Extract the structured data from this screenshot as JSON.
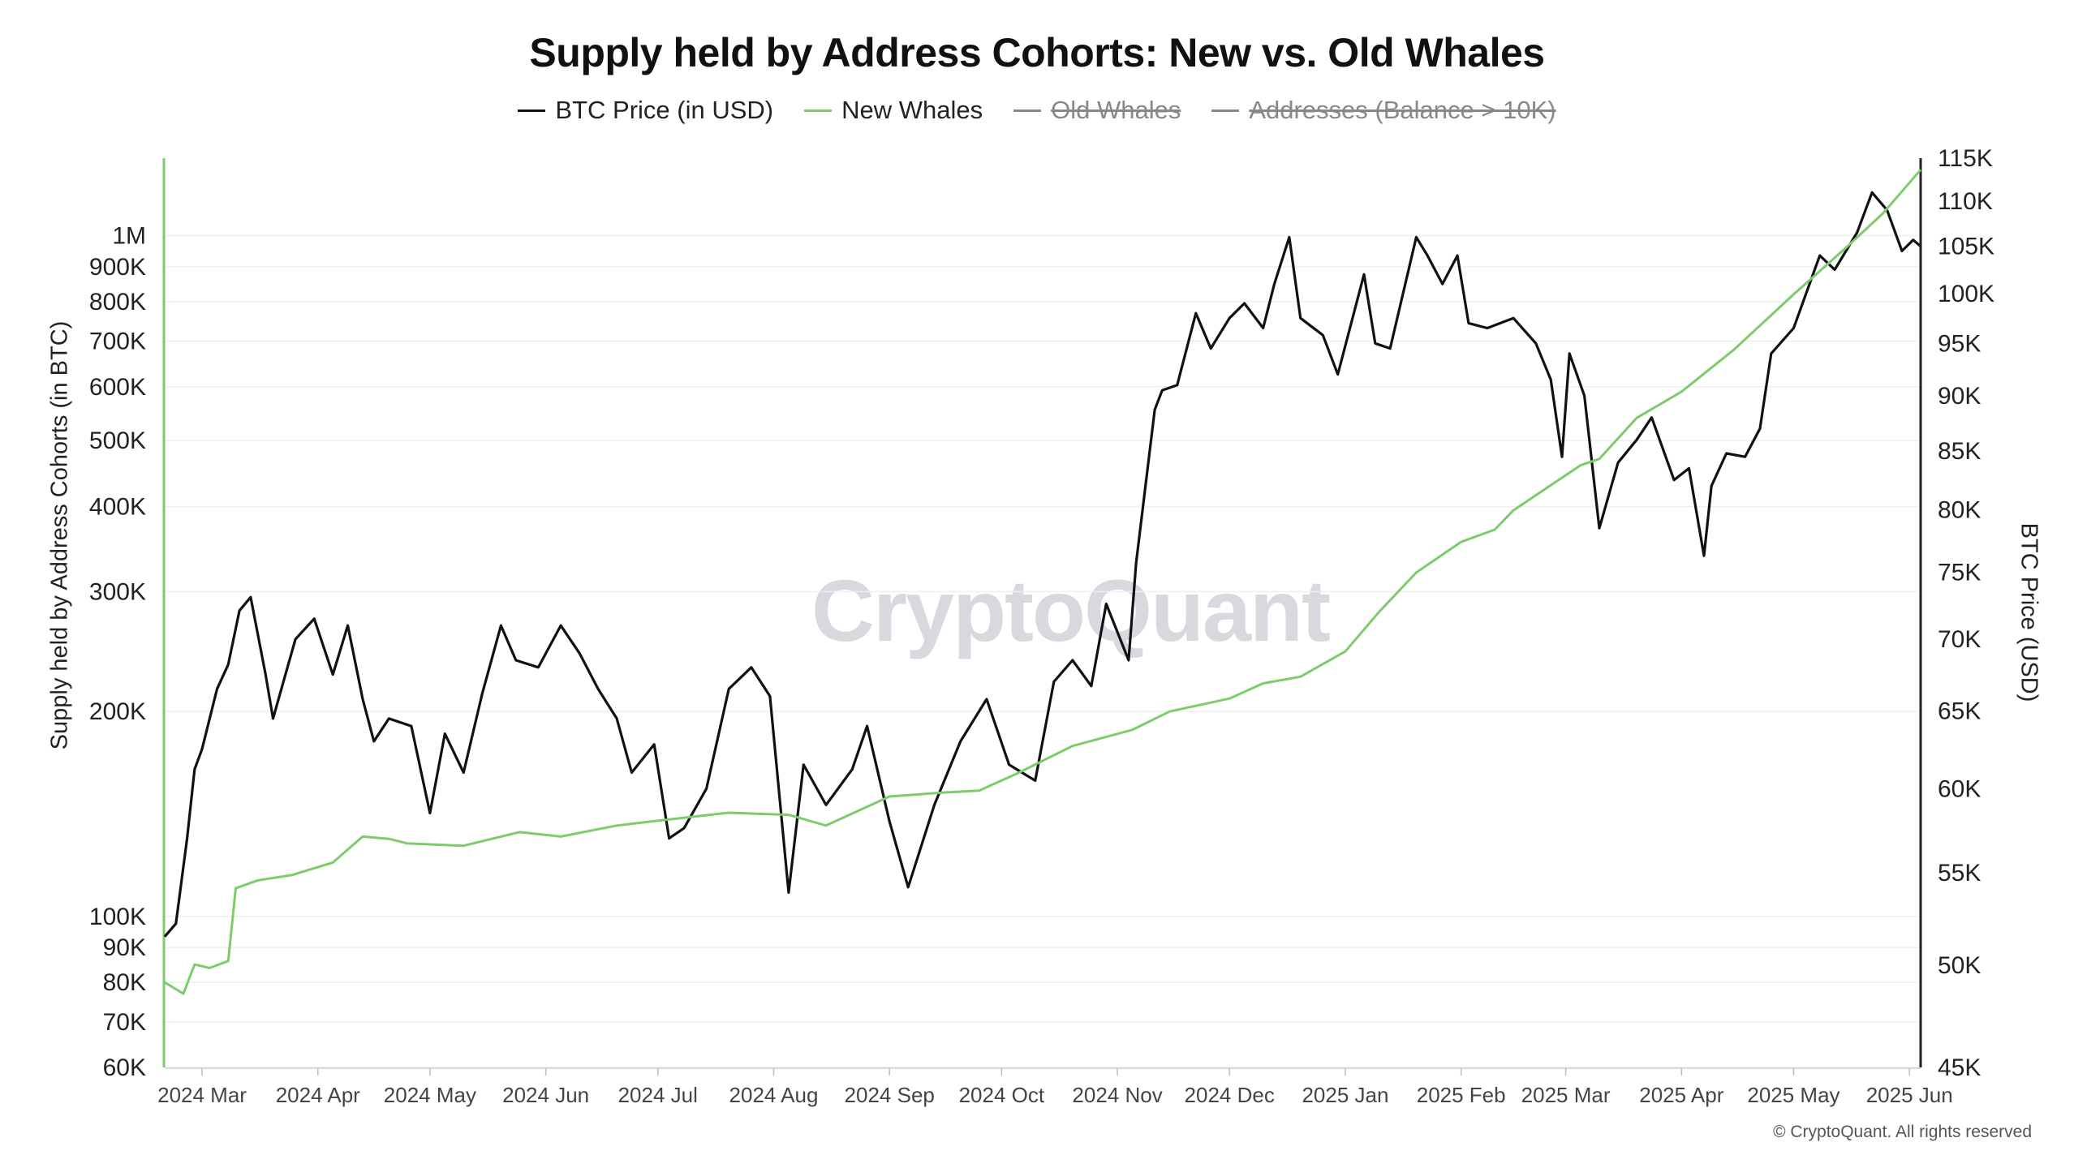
{
  "title": "Supply held by Address Cohorts: New vs. Old Whales",
  "legend": [
    {
      "label": "BTC Price (in USD)",
      "color": "#111111",
      "hidden": false
    },
    {
      "label": "New Whales",
      "color": "#7ccc6c",
      "hidden": false
    },
    {
      "label": "Old Whales",
      "color": "#888888",
      "hidden": true
    },
    {
      "label": "Addresses (Balance > 10K)",
      "color": "#888888",
      "hidden": true
    }
  ],
  "watermark": "CryptoQuant",
  "copyright": "© CryptoQuant. All rights reserved",
  "chart_data": {
    "type": "line",
    "title": "Supply held by Address Cohorts: New vs. Old Whales",
    "ylabel_left": "Supply held by Address Cohorts (in BTC)",
    "ylabel_right": "BTC Price (USD)",
    "left_axis": {
      "scale": "log",
      "range": [
        60000,
        1300000
      ],
      "ticks": [
        {
          "v": 60000,
          "label": "60K"
        },
        {
          "v": 70000,
          "label": "70K"
        },
        {
          "v": 80000,
          "label": "80K"
        },
        {
          "v": 90000,
          "label": "90K"
        },
        {
          "v": 100000,
          "label": "100K"
        },
        {
          "v": 200000,
          "label": "200K"
        },
        {
          "v": 300000,
          "label": "300K"
        },
        {
          "v": 400000,
          "label": "400K"
        },
        {
          "v": 500000,
          "label": "500K"
        },
        {
          "v": 600000,
          "label": "600K"
        },
        {
          "v": 700000,
          "label": "700K"
        },
        {
          "v": 800000,
          "label": "800K"
        },
        {
          "v": 900000,
          "label": "900K"
        },
        {
          "v": 1000000,
          "label": "1M"
        }
      ]
    },
    "right_axis": {
      "scale": "log",
      "range": [
        45000,
        115000
      ],
      "ticks": [
        {
          "v": 45000,
          "label": "45K"
        },
        {
          "v": 50000,
          "label": "50K"
        },
        {
          "v": 55000,
          "label": "55K"
        },
        {
          "v": 60000,
          "label": "60K"
        },
        {
          "v": 65000,
          "label": "65K"
        },
        {
          "v": 70000,
          "label": "70K"
        },
        {
          "v": 75000,
          "label": "75K"
        },
        {
          "v": 80000,
          "label": "80K"
        },
        {
          "v": 85000,
          "label": "85K"
        },
        {
          "v": 90000,
          "label": "90K"
        },
        {
          "v": 95000,
          "label": "95K"
        },
        {
          "v": 100000,
          "label": "100K"
        },
        {
          "v": 105000,
          "label": "105K"
        },
        {
          "v": 110000,
          "label": "110K"
        },
        {
          "v": 115000,
          "label": "115K"
        }
      ]
    },
    "x_range": [
      "2024-02-20",
      "2025-06-04"
    ],
    "x_ticks": [
      {
        "date": "2024-03-01",
        "label": "2024 Mar"
      },
      {
        "date": "2024-04-01",
        "label": "2024 Apr"
      },
      {
        "date": "2024-05-01",
        "label": "2024 May"
      },
      {
        "date": "2024-06-01",
        "label": "2024 Jun"
      },
      {
        "date": "2024-07-01",
        "label": "2024 Jul"
      },
      {
        "date": "2024-08-01",
        "label": "2024 Aug"
      },
      {
        "date": "2024-09-01",
        "label": "2024 Sep"
      },
      {
        "date": "2024-10-01",
        "label": "2024 Oct"
      },
      {
        "date": "2024-11-01",
        "label": "2024 Nov"
      },
      {
        "date": "2024-12-01",
        "label": "2024 Dec"
      },
      {
        "date": "2025-01-01",
        "label": "2025 Jan"
      },
      {
        "date": "2025-02-01",
        "label": "2025 Feb"
      },
      {
        "date": "2025-03-01",
        "label": "2025 Mar"
      },
      {
        "date": "2025-04-01",
        "label": "2025 Apr"
      },
      {
        "date": "2025-05-01",
        "label": "2025 May"
      },
      {
        "date": "2025-06-01",
        "label": "2025 Jun"
      }
    ],
    "grid": "horizontal",
    "series": [
      {
        "name": "BTC Price (in USD)",
        "axis": "right",
        "color": "#111111",
        "x": [
          "2024-02-20",
          "2024-02-23",
          "2024-02-26",
          "2024-02-28",
          "2024-03-01",
          "2024-03-05",
          "2024-03-08",
          "2024-03-11",
          "2024-03-14",
          "2024-03-18",
          "2024-03-20",
          "2024-03-23",
          "2024-03-26",
          "2024-03-31",
          "2024-04-05",
          "2024-04-09",
          "2024-04-13",
          "2024-04-16",
          "2024-04-20",
          "2024-04-26",
          "2024-05-01",
          "2024-05-05",
          "2024-05-10",
          "2024-05-15",
          "2024-05-20",
          "2024-05-24",
          "2024-05-30",
          "2024-06-05",
          "2024-06-10",
          "2024-06-15",
          "2024-06-20",
          "2024-06-24",
          "2024-06-30",
          "2024-07-04",
          "2024-07-08",
          "2024-07-14",
          "2024-07-20",
          "2024-07-26",
          "2024-07-31",
          "2024-08-05",
          "2024-08-09",
          "2024-08-15",
          "2024-08-22",
          "2024-08-26",
          "2024-09-01",
          "2024-09-06",
          "2024-09-13",
          "2024-09-20",
          "2024-09-27",
          "2024-10-03",
          "2024-10-10",
          "2024-10-15",
          "2024-10-20",
          "2024-10-25",
          "2024-10-29",
          "2024-11-04",
          "2024-11-06",
          "2024-11-11",
          "2024-11-13",
          "2024-11-17",
          "2024-11-22",
          "2024-11-26",
          "2024-12-01",
          "2024-12-05",
          "2024-12-10",
          "2024-12-13",
          "2024-12-17",
          "2024-12-20",
          "2024-12-26",
          "2024-12-30",
          "2025-01-06",
          "2025-01-09",
          "2025-01-13",
          "2025-01-20",
          "2025-01-23",
          "2025-01-27",
          "2025-01-31",
          "2025-02-03",
          "2025-02-08",
          "2025-02-15",
          "2025-02-21",
          "2025-02-25",
          "2025-02-28",
          "2025-03-02",
          "2025-03-06",
          "2025-03-10",
          "2025-03-15",
          "2025-03-20",
          "2025-03-24",
          "2025-03-30",
          "2025-04-03",
          "2025-04-07",
          "2025-04-09",
          "2025-04-13",
          "2025-04-18",
          "2025-04-22",
          "2025-04-25",
          "2025-05-01",
          "2025-05-08",
          "2025-05-12",
          "2025-05-18",
          "2025-05-22",
          "2025-05-26",
          "2025-05-30",
          "2025-06-02",
          "2025-06-04"
        ],
        "values": [
          51500,
          52200,
          57000,
          61200,
          62500,
          66500,
          68200,
          72100,
          73100,
          67500,
          64500,
          67200,
          70000,
          71500,
          67500,
          71000,
          65800,
          63000,
          64500,
          64000,
          58500,
          63500,
          61000,
          66200,
          71000,
          68500,
          68000,
          71000,
          69000,
          66500,
          64500,
          61000,
          62800,
          57000,
          57600,
          60000,
          66500,
          68000,
          66000,
          53900,
          61500,
          59000,
          61200,
          64000,
          58000,
          54200,
          59000,
          63000,
          65800,
          61500,
          60500,
          67000,
          68500,
          66700,
          72600,
          68500,
          75700,
          88700,
          90500,
          91000,
          98000,
          94500,
          97500,
          99000,
          96500,
          101000,
          106000,
          97500,
          95800,
          92000,
          102000,
          95000,
          94500,
          106000,
          104000,
          101000,
          104000,
          97000,
          96500,
          97500,
          95000,
          91500,
          84500,
          94000,
          90000,
          78500,
          84000,
          86000,
          88000,
          82500,
          83500,
          76300,
          82000,
          84800,
          84500,
          87000,
          94000,
          96500,
          104000,
          102500,
          106500,
          111000,
          109000,
          104500,
          105700,
          105000
        ]
      },
      {
        "name": "New Whales",
        "axis": "left",
        "color": "#7ccc6c",
        "x": [
          "2024-02-20",
          "2024-02-25",
          "2024-02-28",
          "2024-03-03",
          "2024-03-08",
          "2024-03-10",
          "2024-03-16",
          "2024-03-25",
          "2024-04-05",
          "2024-04-13",
          "2024-04-20",
          "2024-04-25",
          "2024-05-10",
          "2024-05-25",
          "2024-06-05",
          "2024-06-20",
          "2024-06-30",
          "2024-07-20",
          "2024-08-05",
          "2024-08-15",
          "2024-09-01",
          "2024-09-15",
          "2024-09-25",
          "2024-10-05",
          "2024-10-20",
          "2024-11-05",
          "2024-11-15",
          "2024-12-01",
          "2024-12-10",
          "2024-12-20",
          "2025-01-01",
          "2025-01-10",
          "2025-01-20",
          "2025-02-01",
          "2025-02-10",
          "2025-02-15",
          "2025-02-25",
          "2025-03-05",
          "2025-03-10",
          "2025-03-20",
          "2025-04-01",
          "2025-04-15",
          "2025-05-01",
          "2025-05-15",
          "2025-05-25",
          "2025-06-04"
        ],
        "values": [
          80000,
          77000,
          85000,
          84000,
          86000,
          110000,
          113000,
          115000,
          120000,
          131000,
          130000,
          128000,
          127000,
          133000,
          131000,
          136000,
          138000,
          142000,
          141000,
          136000,
          150000,
          152000,
          153000,
          162000,
          178000,
          188000,
          200000,
          209000,
          220000,
          225000,
          245000,
          280000,
          320000,
          355000,
          370000,
          395000,
          430000,
          460000,
          470000,
          540000,
          590000,
          680000,
          820000,
          960000,
          1080000,
          1250000
        ]
      }
    ]
  }
}
